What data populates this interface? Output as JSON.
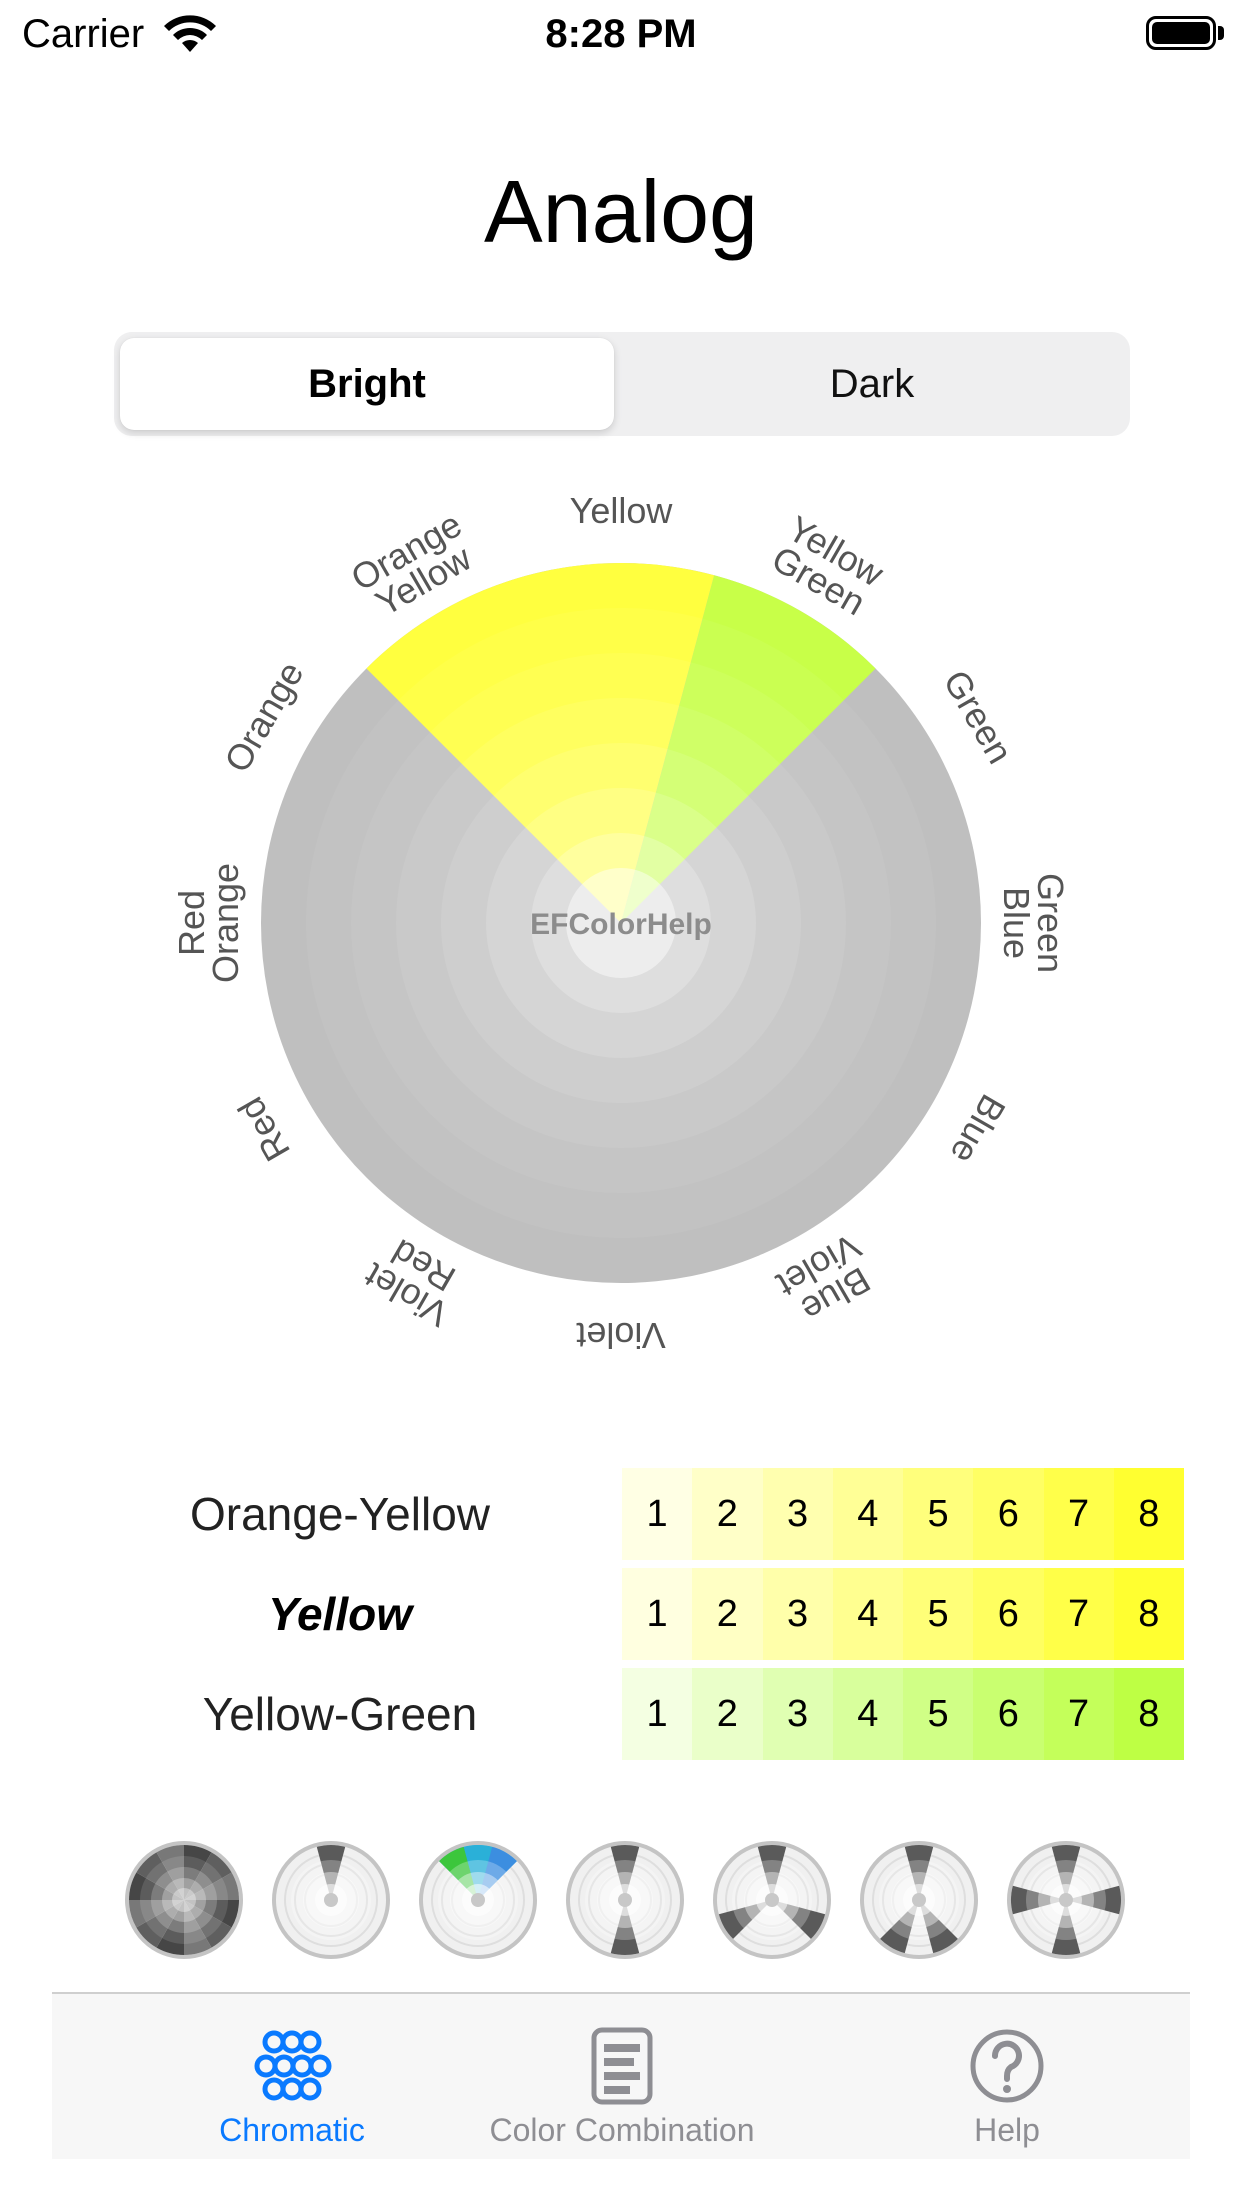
{
  "status_bar": {
    "carrier": "Carrier",
    "time": "8:28 PM",
    "wifi_icon": "wifi-icon",
    "battery_icon": "battery-icon"
  },
  "title": "Analog",
  "segmented": {
    "options": [
      "Bright",
      "Dark"
    ],
    "selected": "Bright"
  },
  "wheel": {
    "center_text": "EFColorHelp",
    "labels": [
      [
        "Yellow"
      ],
      [
        "Yellow",
        "Green"
      ],
      [
        "Green"
      ],
      [
        "Green",
        "Blue"
      ],
      [
        "Blue"
      ],
      [
        "Blue",
        "Violet"
      ],
      [
        "Violet"
      ],
      [
        "Violet",
        "Red"
      ],
      [
        "Red"
      ],
      [
        "Red",
        "Orange"
      ],
      [
        "Orange"
      ],
      [
        "Orange",
        "Yellow"
      ]
    ],
    "highlighted_segments": [
      {
        "name": "Orange Yellow",
        "color": "#ffff3f"
      },
      {
        "name": "Yellow",
        "color": "#ffff3f"
      },
      {
        "name": "Yellow Green",
        "color": "#c8ff48"
      }
    ],
    "base_color": "#bfbfbf"
  },
  "scales": [
    {
      "name": "Orange-Yellow",
      "selected": false,
      "cells": [
        "1",
        "2",
        "3",
        "4",
        "5",
        "6",
        "7",
        "8"
      ],
      "colors": [
        "#ffffe4",
        "#ffffc8",
        "#ffffaf",
        "#ffff96",
        "#ffff7c",
        "#ffff64",
        "#ffff4a",
        "#ffff30"
      ]
    },
    {
      "name": "Yellow",
      "selected": true,
      "cells": [
        "1",
        "2",
        "3",
        "4",
        "5",
        "6",
        "7",
        "8"
      ],
      "colors": [
        "#ffffe0",
        "#ffffc4",
        "#ffffaa",
        "#ffff90",
        "#ffff78",
        "#ffff60",
        "#ffff48",
        "#ffff30"
      ]
    },
    {
      "name": "Yellow-Green",
      "selected": false,
      "cells": [
        "1",
        "2",
        "3",
        "4",
        "5",
        "6",
        "7",
        "8"
      ],
      "colors": [
        "#f4ffe2",
        "#eaffc9",
        "#e0ffb2",
        "#d8ff9c",
        "#d0ff86",
        "#c9ff70",
        "#c4ff5a",
        "#beff44"
      ]
    }
  ],
  "scheme_thumbnails": [
    {
      "name": "all-scheme-icon"
    },
    {
      "name": "mono-scheme-icon"
    },
    {
      "name": "analog-scheme-icon",
      "selected": true
    },
    {
      "name": "complementary-scheme-icon"
    },
    {
      "name": "triad-scheme-icon"
    },
    {
      "name": "split-scheme-icon"
    },
    {
      "name": "tetrad-scheme-icon"
    }
  ],
  "tabbar": {
    "items": [
      {
        "label": "Chromatic",
        "icon": "chromatic-circles-icon",
        "active": true
      },
      {
        "label": "Color Combination",
        "icon": "document-list-icon",
        "active": false
      },
      {
        "label": "Help",
        "icon": "question-mark-icon",
        "active": false
      }
    ],
    "active_color": "#0a7aff",
    "inactive_color": "#8e8e93"
  }
}
